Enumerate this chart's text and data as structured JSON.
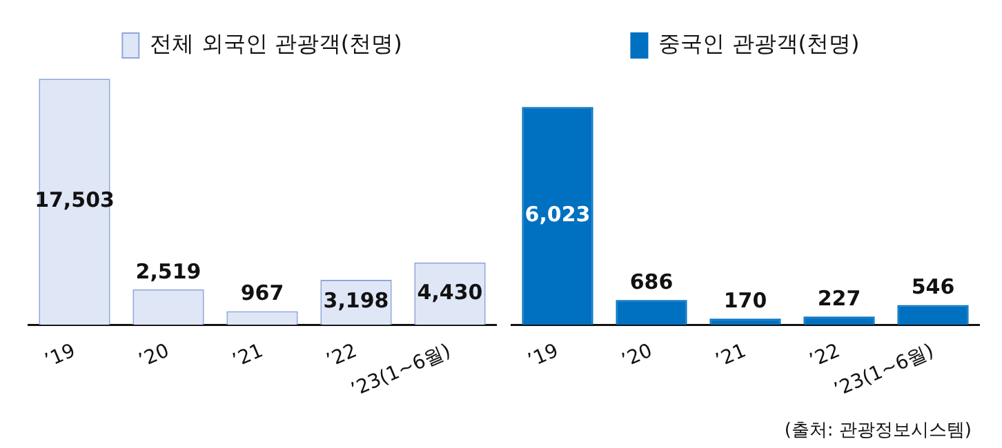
{
  "chart_data": [
    {
      "type": "bar",
      "categories": [
        "’19",
        "’20",
        "’21",
        "’22",
        "’23(1~6월)"
      ],
      "legend": "top",
      "series": [
        {
          "name": "전체 외국인 관광객(천명)",
          "color": "#dfe6f6",
          "values": [
            17503,
            2519,
            967,
            3198,
            4430
          ],
          "value_labels": [
            "17,503",
            "2,519",
            "967",
            "3,198",
            "4,430"
          ]
        }
      ]
    },
    {
      "type": "bar",
      "categories": [
        "’19",
        "’20",
        "’21",
        "’22",
        "’23(1~6월)"
      ],
      "legend": "top",
      "annotations": [
        "(출처: 관광정보시스템)"
      ],
      "series": [
        {
          "name": "중국인 관광객(천명)",
          "color": "#0070c0",
          "values": [
            6023,
            686,
            170,
            227,
            546
          ],
          "value_labels": [
            "6,023",
            "686",
            "170",
            "227",
            "546"
          ]
        }
      ]
    }
  ]
}
